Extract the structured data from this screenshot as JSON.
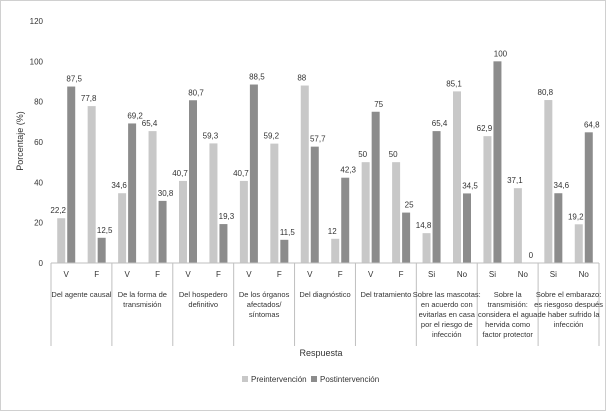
{
  "chart_data": {
    "type": "bar",
    "ylabel": "Porcentaje (%)",
    "xlabel": "Respuesta",
    "ylim": [
      0,
      120
    ],
    "yticks": [
      0,
      20,
      40,
      60,
      80,
      100,
      120
    ],
    "grid": false,
    "legend_position": "bottom",
    "colors": {
      "pre": "#c8c8c8",
      "post": "#8c8c8c",
      "axis": "#bfbfbf"
    },
    "series_names": [
      "Preintervención",
      "Postintervención"
    ],
    "groups": [
      {
        "label": "Del agente causal",
        "sub": [
          {
            "label": "V",
            "pre": 22.2,
            "post": 87.5,
            "pre_label": "22,2",
            "post_label": "87,5"
          },
          {
            "label": "F",
            "pre": 77.8,
            "post": 12.5,
            "pre_label": "77,8",
            "post_label": "12,5"
          }
        ]
      },
      {
        "label": "De la forma de transmisión",
        "sub": [
          {
            "label": "V",
            "pre": 34.6,
            "post": 69.2,
            "pre_label": "34,6",
            "post_label": "69,2"
          },
          {
            "label": "F",
            "pre": 65.4,
            "post": 30.8,
            "pre_label": "65,4",
            "post_label": "30,8"
          }
        ]
      },
      {
        "label": "Del hospedero definitivo",
        "sub": [
          {
            "label": "V",
            "pre": 40.7,
            "post": 80.7,
            "pre_label": "40,7",
            "post_label": "80,7"
          },
          {
            "label": "F",
            "pre": 59.3,
            "post": 19.3,
            "pre_label": "59,3",
            "post_label": "19,3"
          }
        ]
      },
      {
        "label": "De los órganos afectados/ síntomas",
        "sub": [
          {
            "label": "V",
            "pre": 40.7,
            "post": 88.5,
            "pre_label": "40,7",
            "post_label": "88,5"
          },
          {
            "label": "F",
            "pre": 59.2,
            "post": 11.5,
            "pre_label": "59,2",
            "post_label": "11,5"
          }
        ]
      },
      {
        "label": "Del diagnóstico",
        "sub": [
          {
            "label": "V",
            "pre": 88,
            "post": 57.7,
            "pre_label": "88",
            "post_label": "57,7"
          },
          {
            "label": "F",
            "pre": 12,
            "post": 42.3,
            "pre_label": "12",
            "post_label": "42,3"
          }
        ]
      },
      {
        "label": "Del tratamiento",
        "sub": [
          {
            "label": "V",
            "pre": 50,
            "post": 75,
            "pre_label": "50",
            "post_label": "75"
          },
          {
            "label": "F",
            "pre": 50,
            "post": 25,
            "pre_label": "50",
            "post_label": "25"
          }
        ]
      },
      {
        "label": "Sobre las mascotas: en acuerdo con evitarlas en casa por el riesgo de infección",
        "sub": [
          {
            "label": "Si",
            "pre": 14.8,
            "post": 65.4,
            "pre_label": "14,8",
            "post_label": "65,4"
          },
          {
            "label": "No",
            "pre": 85.1,
            "post": 34.5,
            "pre_label": "85,1",
            "post_label": "34,5"
          }
        ]
      },
      {
        "label": "Sobre la transmisión: considera el agua hervida como factor protector",
        "sub": [
          {
            "label": "Si",
            "pre": 62.9,
            "post": 100,
            "pre_label": "62,9",
            "post_label": "100"
          },
          {
            "label": "No",
            "pre": 37.1,
            "post": 0,
            "pre_label": "37,1",
            "post_label": "0"
          }
        ]
      },
      {
        "label": "Sobre el embarazo: es riesgoso después de haber sufrido la infección",
        "sub": [
          {
            "label": "Si",
            "pre": 80.8,
            "post": 34.6,
            "pre_label": "80,8",
            "post_label": "34,6"
          },
          {
            "label": "No",
            "pre": 19.2,
            "post": 64.8,
            "pre_label": "19,2",
            "post_label": "64,8"
          }
        ]
      }
    ]
  }
}
